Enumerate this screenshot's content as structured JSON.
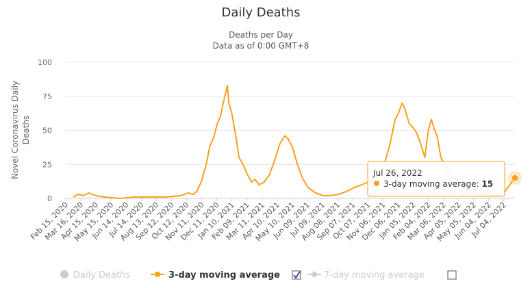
{
  "chart_data": {
    "type": "line",
    "title": "Daily Deaths",
    "subtitle_lines": [
      "Deaths per Day",
      "Data as of 0:00 GMT+8"
    ],
    "ylabel_lines": [
      "Novel Coronavirus Daily",
      "Deaths"
    ],
    "xlabel": "",
    "ylim": [
      0,
      100
    ],
    "yticks": [
      0,
      25,
      50,
      75,
      100
    ],
    "xrange": [
      "2020-02-15",
      "2022-07-26"
    ],
    "grid": true,
    "legend_position": "bottom",
    "x_tick_labels": [
      "Feb 15, 2020",
      "Mar 16, 2020",
      "Apr 15, 2020",
      "May 15, 2020",
      "Jun 14, 2020",
      "Jul 14, 2020",
      "Aug 13, 2020",
      "Sep 12, 2020",
      "Oct 12, 2020",
      "Nov 11, 2020",
      "Dec 11, 2020",
      "Jan 10, 2021",
      "Feb 09, 2021",
      "Mar 11, 2021",
      "Apr 10, 2021",
      "May 10, 2021",
      "Jun 09, 2021",
      "Jul 09, 2021",
      "Aug 08, 2021",
      "Sep 07, 2021",
      "Oct 07, 2021",
      "Nov 06, 2021",
      "Dec 06, 2021",
      "Jan 05, 2022",
      "Feb 04, 2022",
      "Mar 06, 2022",
      "Apr 05, 2022",
      "May 05, 2022",
      "Jun 04, 2022",
      "Jul 04, 2022"
    ],
    "series": [
      {
        "name": "3-day moving average",
        "color": "#f7a11a",
        "visible": true,
        "points": [
          [
            "2020-03-01",
            1
          ],
          [
            "2020-03-10",
            3
          ],
          [
            "2020-03-20",
            2
          ],
          [
            "2020-04-01",
            4
          ],
          [
            "2020-04-15",
            2
          ],
          [
            "2020-05-01",
            1
          ],
          [
            "2020-06-01",
            0
          ],
          [
            "2020-07-01",
            1
          ],
          [
            "2020-08-01",
            1
          ],
          [
            "2020-09-01",
            1
          ],
          [
            "2020-10-01",
            2
          ],
          [
            "2020-10-15",
            4
          ],
          [
            "2020-10-25",
            3
          ],
          [
            "2020-11-01",
            5
          ],
          [
            "2020-11-10",
            12
          ],
          [
            "2020-11-20",
            25
          ],
          [
            "2020-11-27",
            38
          ],
          [
            "2020-12-05",
            45
          ],
          [
            "2020-12-12",
            55
          ],
          [
            "2020-12-18",
            60
          ],
          [
            "2020-12-25",
            72
          ],
          [
            "2021-01-01",
            83
          ],
          [
            "2021-01-04",
            70
          ],
          [
            "2021-01-10",
            62
          ],
          [
            "2021-01-18",
            45
          ],
          [
            "2021-01-24",
            30
          ],
          [
            "2021-02-01",
            25
          ],
          [
            "2021-02-09",
            18
          ],
          [
            "2021-02-18",
            12
          ],
          [
            "2021-02-25",
            14
          ],
          [
            "2021-03-05",
            10
          ],
          [
            "2021-03-15",
            12
          ],
          [
            "2021-03-25",
            17
          ],
          [
            "2021-04-05",
            28
          ],
          [
            "2021-04-15",
            40
          ],
          [
            "2021-04-25",
            46
          ],
          [
            "2021-05-01",
            44
          ],
          [
            "2021-05-10",
            38
          ],
          [
            "2021-05-20",
            25
          ],
          [
            "2021-05-30",
            15
          ],
          [
            "2021-06-10",
            8
          ],
          [
            "2021-06-25",
            4
          ],
          [
            "2021-07-10",
            2
          ],
          [
            "2021-07-25",
            2
          ],
          [
            "2021-08-10",
            3
          ],
          [
            "2021-08-25",
            5
          ],
          [
            "2021-09-10",
            8
          ],
          [
            "2021-09-25",
            10
          ],
          [
            "2021-10-07",
            12
          ],
          [
            "2021-10-20",
            14
          ],
          [
            "2021-11-01",
            18
          ],
          [
            "2021-11-10",
            27
          ],
          [
            "2021-11-20",
            40
          ],
          [
            "2021-11-30",
            58
          ],
          [
            "2021-12-06",
            62
          ],
          [
            "2021-12-14",
            70
          ],
          [
            "2021-12-20",
            65
          ],
          [
            "2021-12-28",
            55
          ],
          [
            "2022-01-05",
            52
          ],
          [
            "2022-01-12",
            48
          ],
          [
            "2022-01-20",
            40
          ],
          [
            "2022-01-28",
            30
          ],
          [
            "2022-02-04",
            50
          ],
          [
            "2022-02-10",
            58
          ],
          [
            "2022-02-15",
            52
          ],
          [
            "2022-02-22",
            45
          ],
          [
            "2022-03-01",
            30
          ],
          [
            "2022-03-08",
            25
          ],
          [
            "2022-03-15",
            20
          ],
          [
            "2022-03-25",
            16
          ],
          [
            "2022-04-05",
            12
          ],
          [
            "2022-04-15",
            8
          ],
          [
            "2022-05-01",
            5
          ],
          [
            "2022-05-15",
            3
          ],
          [
            "2022-06-04",
            2
          ],
          [
            "2022-06-20",
            2
          ],
          [
            "2022-07-04",
            4
          ],
          [
            "2022-07-12",
            8
          ],
          [
            "2022-07-20",
            12
          ],
          [
            "2022-07-26",
            15
          ]
        ]
      },
      {
        "name": "Daily Deaths",
        "color": "#cccccc",
        "visible": false
      },
      {
        "name": "7-day moving average",
        "color": "#cccccc",
        "visible": false
      }
    ],
    "tooltip": {
      "date": "Jul 26, 2022",
      "series_name": "3-day moving average",
      "value": 15
    }
  },
  "legend": {
    "daily_deaths": "Daily Deaths",
    "moving3": "3-day moving average",
    "moving3_checked": true,
    "moving7": "7-day moving average",
    "moving7_checked": false
  }
}
